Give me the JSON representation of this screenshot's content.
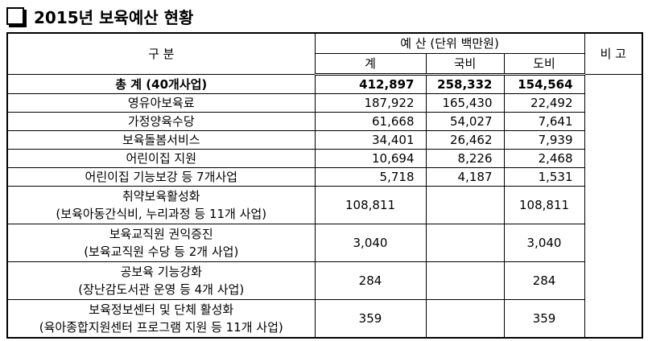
{
  "title": "2015년 보육예산 현황",
  "table": {
    "header": {
      "category": "구 분",
      "budget": "예 산",
      "unit": "(단위 백만원)",
      "remarks": "비 고",
      "total": "계",
      "national": "국비",
      "provincial": "도비"
    },
    "rows": [
      {
        "label": [
          "총  계 (40개사업)"
        ],
        "total": "412,897",
        "national": "258,332",
        "provincial": "154,564"
      },
      {
        "label": [
          "영유아보육료"
        ],
        "total": "187,922",
        "national": "165,430",
        "provincial": "22,492"
      },
      {
        "label": [
          "가정양육수당"
        ],
        "total": "61,668",
        "national": "54,027",
        "provincial": "7,641"
      },
      {
        "label": [
          "보육돌봄서비스"
        ],
        "total": "34,401",
        "national": "26,462",
        "provincial": "7,939"
      },
      {
        "label": [
          "어린이집 지원"
        ],
        "total": "10,694",
        "national": "8,226",
        "provincial": "2,468"
      },
      {
        "label": [
          "어린이집 기능보강 등 7개사업"
        ],
        "total": "5,718",
        "national": "4,187",
        "provincial": "1,531"
      },
      {
        "label": [
          "취약보육활성화",
          "(보육아동간식비, 누리과정 등 11개 사업)"
        ],
        "total": "108,811",
        "provincial": "108,811"
      },
      {
        "label": [
          "보육교직원 권익증진",
          "(보육교직원 수당 등 2개 사업)"
        ],
        "total": "3,040",
        "provincial": "3,040"
      },
      {
        "label": [
          "공보육 기능강화",
          "(장난감도서관 운영 등 4개 사업)"
        ],
        "total": "284",
        "provincial": "284"
      },
      {
        "label": [
          "보육정보센터 및 단체 활성화",
          "(육아종합지원센터 프로그램 지원 등 11개 사업)"
        ],
        "total": "359",
        "provincial": "359"
      }
    ]
  }
}
